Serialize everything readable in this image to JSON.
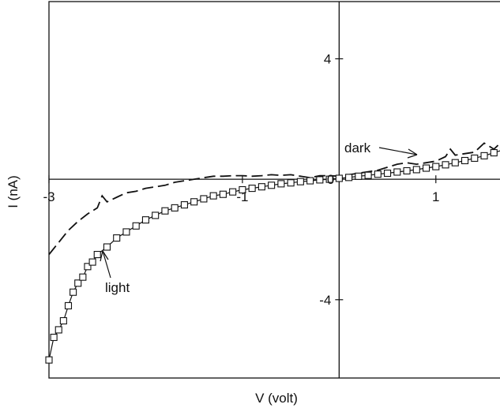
{
  "chart_data": {
    "type": "line",
    "xlabel": "V (volt)",
    "ylabel": "I (nA)",
    "xlim": [
      -3,
      1.9
    ],
    "ylim": [
      -6.6,
      5.9
    ],
    "x_tick_labels": [
      {
        "value": -3,
        "label": "-3"
      },
      {
        "value": -1,
        "label": "-1"
      },
      {
        "value": 1,
        "label": "1"
      }
    ],
    "y_tick_labels": [
      {
        "value": 4,
        "label": "4"
      },
      {
        "value": -4,
        "label": "-4"
      }
    ],
    "origin_label": "0",
    "grid": false,
    "series": [
      {
        "name": "dark",
        "style": "dashed",
        "marker": "none",
        "points": [
          [
            -3.0,
            -2.5
          ],
          [
            -2.9,
            -2.1
          ],
          [
            -2.8,
            -1.7
          ],
          [
            -2.7,
            -1.4
          ],
          [
            -2.6,
            -1.15
          ],
          [
            -2.5,
            -0.95
          ],
          [
            -2.45,
            -0.55
          ],
          [
            -2.4,
            -0.75
          ],
          [
            -2.3,
            -0.6
          ],
          [
            -2.2,
            -0.45
          ],
          [
            -2.1,
            -0.4
          ],
          [
            -2.0,
            -0.3
          ],
          [
            -1.9,
            -0.25
          ],
          [
            -1.8,
            -0.2
          ],
          [
            -1.7,
            -0.1
          ],
          [
            -1.6,
            -0.05
          ],
          [
            -1.5,
            0.0
          ],
          [
            -1.4,
            0.05
          ],
          [
            -1.3,
            0.1
          ],
          [
            -1.2,
            0.1
          ],
          [
            -1.1,
            0.12
          ],
          [
            -1.0,
            0.12
          ],
          [
            -0.9,
            0.1
          ],
          [
            -0.8,
            0.12
          ],
          [
            -0.7,
            0.15
          ],
          [
            -0.6,
            0.13
          ],
          [
            -0.5,
            0.15
          ],
          [
            -0.4,
            0.1
          ],
          [
            -0.3,
            0.05
          ],
          [
            -0.2,
            0.12
          ],
          [
            -0.1,
            0.12
          ],
          [
            0.0,
            0.1
          ],
          [
            0.1,
            0.15
          ],
          [
            0.2,
            0.2
          ],
          [
            0.3,
            0.25
          ],
          [
            0.4,
            0.3
          ],
          [
            0.5,
            0.4
          ],
          [
            0.6,
            0.5
          ],
          [
            0.7,
            0.55
          ],
          [
            0.8,
            0.5
          ],
          [
            0.9,
            0.55
          ],
          [
            1.0,
            0.6
          ],
          [
            1.1,
            0.75
          ],
          [
            1.15,
            1.0
          ],
          [
            1.2,
            0.8
          ],
          [
            1.3,
            0.85
          ],
          [
            1.4,
            0.9
          ],
          [
            1.5,
            1.2
          ],
          [
            1.6,
            1.0
          ],
          [
            1.7,
            1.3
          ],
          [
            1.75,
            1.5
          ],
          [
            1.8,
            1.25
          ],
          [
            1.9,
            1.45
          ]
        ]
      },
      {
        "name": "light",
        "style": "solid",
        "marker": "open-square",
        "points": [
          [
            -3.0,
            -6.0
          ],
          [
            -2.95,
            -5.25
          ],
          [
            -2.9,
            -5.0
          ],
          [
            -2.85,
            -4.7
          ],
          [
            -2.8,
            -4.2
          ],
          [
            -2.75,
            -3.75
          ],
          [
            -2.7,
            -3.45
          ],
          [
            -2.65,
            -3.25
          ],
          [
            -2.6,
            -2.9
          ],
          [
            -2.55,
            -2.75
          ],
          [
            -2.5,
            -2.5
          ],
          [
            -2.4,
            -2.25
          ],
          [
            -2.3,
            -1.95
          ],
          [
            -2.2,
            -1.75
          ],
          [
            -2.1,
            -1.55
          ],
          [
            -2.0,
            -1.35
          ],
          [
            -1.9,
            -1.2
          ],
          [
            -1.8,
            -1.05
          ],
          [
            -1.7,
            -0.95
          ],
          [
            -1.6,
            -0.85
          ],
          [
            -1.5,
            -0.75
          ],
          [
            -1.4,
            -0.65
          ],
          [
            -1.3,
            -0.55
          ],
          [
            -1.2,
            -0.5
          ],
          [
            -1.1,
            -0.42
          ],
          [
            -1.0,
            -0.35
          ],
          [
            -0.9,
            -0.3
          ],
          [
            -0.8,
            -0.25
          ],
          [
            -0.7,
            -0.2
          ],
          [
            -0.6,
            -0.15
          ],
          [
            -0.5,
            -0.12
          ],
          [
            -0.4,
            -0.08
          ],
          [
            -0.3,
            -0.05
          ],
          [
            -0.2,
            -0.02
          ],
          [
            -0.1,
            0.0
          ],
          [
            0.0,
            0.03
          ],
          [
            0.1,
            0.06
          ],
          [
            0.2,
            0.1
          ],
          [
            0.3,
            0.13
          ],
          [
            0.4,
            0.17
          ],
          [
            0.5,
            0.2
          ],
          [
            0.6,
            0.24
          ],
          [
            0.7,
            0.28
          ],
          [
            0.8,
            0.32
          ],
          [
            0.9,
            0.37
          ],
          [
            1.0,
            0.42
          ],
          [
            1.1,
            0.48
          ],
          [
            1.2,
            0.55
          ],
          [
            1.3,
            0.62
          ],
          [
            1.4,
            0.7
          ],
          [
            1.5,
            0.78
          ],
          [
            1.6,
            0.88
          ],
          [
            1.7,
            0.98
          ],
          [
            1.8,
            1.1
          ],
          [
            1.9,
            1.22
          ]
        ]
      }
    ],
    "annotations": [
      {
        "text": "dark",
        "series": "dark",
        "arrow": true
      },
      {
        "text": "light",
        "series": "light",
        "arrow": true
      }
    ]
  }
}
